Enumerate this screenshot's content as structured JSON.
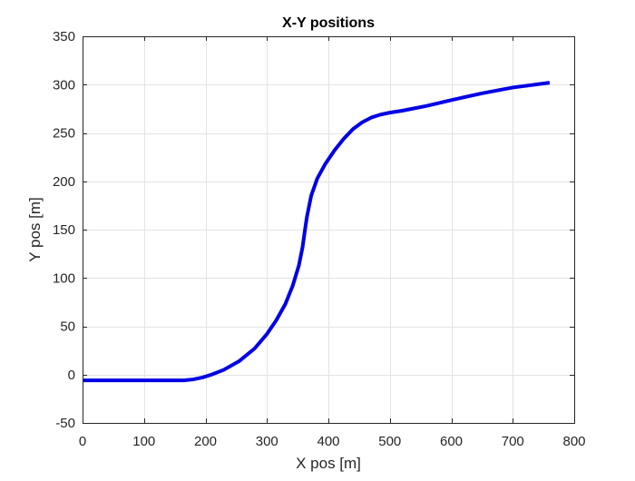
{
  "chart_data": {
    "type": "line",
    "title": "X-Y positions",
    "xlabel": "X pos [m]",
    "ylabel": "Y pos [m]",
    "xlim": [
      0,
      800
    ],
    "ylim": [
      -50,
      350
    ],
    "xticks": [
      0,
      100,
      200,
      300,
      400,
      500,
      600,
      700,
      800
    ],
    "yticks": [
      -50,
      0,
      50,
      100,
      150,
      200,
      250,
      300,
      350
    ],
    "xtick_labels": [
      "0",
      "100",
      "200",
      "300",
      "400",
      "500",
      "600",
      "700",
      "800"
    ],
    "ytick_labels": [
      "-50",
      "0",
      "50",
      "100",
      "150",
      "200",
      "250",
      "300",
      "350"
    ],
    "grid": true,
    "series": [
      {
        "color": "#0000e6",
        "x": [
          0,
          50,
          100,
          150,
          165,
          180,
          195,
          210,
          230,
          255,
          280,
          300,
          315,
          330,
          342,
          352,
          358,
          362,
          365,
          372,
          382,
          395,
          410,
          425,
          440,
          455,
          470,
          485,
          500,
          520,
          560,
          600,
          650,
          700,
          760
        ],
        "y": [
          -6,
          -6,
          -6,
          -6,
          -6,
          -5,
          -3,
          0,
          5,
          14,
          27,
          42,
          56,
          73,
          92,
          113,
          132,
          150,
          163,
          185,
          203,
          218,
          232,
          244,
          254,
          261,
          266,
          269,
          271,
          273,
          278,
          284,
          291,
          297,
          302
        ]
      }
    ]
  }
}
